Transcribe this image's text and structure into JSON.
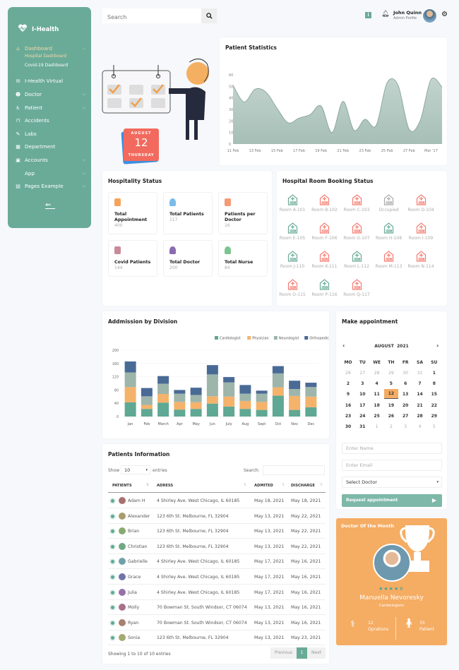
{
  "sidebar": {
    "brand": "I-Health",
    "items": [
      {
        "label": "Dashboard",
        "icon": "home-icon",
        "chevron": true,
        "active": true
      },
      {
        "label": "I-Health Virtual",
        "icon": "chat-icon",
        "chevron": false
      },
      {
        "label": "Doctor",
        "icon": "doctor-icon",
        "chevron": true
      },
      {
        "label": "Patient",
        "icon": "patient-icon",
        "chevron": true
      },
      {
        "label": "Accidents",
        "icon": "bed-icon",
        "chevron": false
      },
      {
        "label": "Labs",
        "icon": "test-tube-icon",
        "chevron": false
      },
      {
        "label": "Department",
        "icon": "building-icon",
        "chevron": false
      },
      {
        "label": "Accounts",
        "icon": "calculator-icon",
        "chevron": true
      },
      {
        "label": "App",
        "icon": "code-icon",
        "chevron": true
      },
      {
        "label": "Pages Example",
        "icon": "page-icon",
        "chevron": true
      }
    ],
    "subitems": [
      {
        "label": "Hospital Dashboard",
        "active": true
      },
      {
        "label": "Covid-19 Dashboard"
      }
    ],
    "collapse_icon": "arrow-left-icon"
  },
  "search": {
    "placeholder": "Search"
  },
  "header": {
    "user_name": "John Quinn",
    "user_role": "Admin Profile"
  },
  "illustration": {
    "month": "AUGUST",
    "day": "12",
    "weekday": "THURSDAY"
  },
  "patient_stats": {
    "title": "Patient Statistics"
  },
  "hospitality": {
    "title": "Hospitality Status",
    "tiles": [
      {
        "label": "Total Appointment",
        "value": "400",
        "color": "#f5a35a"
      },
      {
        "label": "Total Patients",
        "value": "117",
        "color": "#7bbbe8"
      },
      {
        "label": "Patients per Doctor",
        "value": "16",
        "color": "#f59a76"
      },
      {
        "label": "Covid Patients",
        "value": "144",
        "color": "#c98a9a"
      },
      {
        "label": "Total Doctor",
        "value": "200",
        "color": "#8a6bb0"
      },
      {
        "label": "Total Nurse",
        "value": "84",
        "color": "#7cc48e"
      }
    ]
  },
  "rooms": {
    "title": "Hospital Room Booking Status",
    "items": [
      {
        "label": "Room A-101",
        "status": "available"
      },
      {
        "label": "Room B-102",
        "status": "booked"
      },
      {
        "label": "Room C-103",
        "status": "booked"
      },
      {
        "label": "Occupied",
        "status": "occupied"
      },
      {
        "label": "Room D-104",
        "status": "booked"
      },
      {
        "label": "Room E-105",
        "status": "available"
      },
      {
        "label": "Room F-106",
        "status": "booked"
      },
      {
        "label": "Room G-107",
        "status": "booked"
      },
      {
        "label": "Room H-108",
        "status": "available"
      },
      {
        "label": "Room I-109",
        "status": "booked"
      },
      {
        "label": "Room J-110",
        "status": "available"
      },
      {
        "label": "Room K-111",
        "status": "booked"
      },
      {
        "label": "Room L-112",
        "status": "available"
      },
      {
        "label": "Room M-113",
        "status": "booked"
      },
      {
        "label": "Room N-114",
        "status": "booked"
      },
      {
        "label": "Room O-115",
        "status": "booked"
      },
      {
        "label": "Room P-116",
        "status": "available"
      },
      {
        "label": "Room Q-117",
        "status": "booked"
      }
    ],
    "colors": {
      "available": "#6aab98",
      "booked": "#f47c72",
      "occupied": "#aaaaaa"
    }
  },
  "appointment": {
    "title": "Make appointment",
    "month": "AUGUST  2021",
    "weekdays": [
      "MO",
      "TU",
      "WE",
      "TH",
      "FR",
      "SA",
      "SU"
    ],
    "days": [
      [
        "26",
        "27",
        "28",
        "29",
        "30",
        "31",
        "1"
      ],
      [
        "2",
        "3",
        "4",
        "5",
        "6",
        "7",
        "8"
      ],
      [
        "9",
        "10",
        "11",
        "12",
        "13",
        "14",
        "15"
      ],
      [
        "16",
        "17",
        "18",
        "19",
        "20",
        "21",
        "22"
      ],
      [
        "23",
        "24",
        "25",
        "26",
        "27",
        "28",
        "29"
      ],
      [
        "30",
        "31",
        "1",
        "2",
        "3",
        "4",
        "5"
      ]
    ],
    "selected": "12",
    "name_placeholder": "Enter Name",
    "email_placeholder": "Enter Email",
    "doctor_select": "Select Doctor",
    "submit": "Request appointment"
  },
  "doctor_month": {
    "title": "Doctor Of the Month",
    "name": "Manuella Nevoresky",
    "specialty": "Cardiologists",
    "rating": 4.5,
    "operations_value": "12",
    "operations_label": "Oprations",
    "patients_value": "35",
    "patients_label": "Patient"
  },
  "patients": {
    "title": "Patients Information",
    "show_label": "Show",
    "entries_value": "10",
    "entries_label": "entries",
    "search_label": "Search:",
    "columns": [
      "PATIENTS",
      "ADRESS",
      "ADMITED",
      "DISCHARGE"
    ],
    "rows": [
      [
        "Adam H",
        "4 Shirley Ave. West Chicago, IL 60185",
        "May 18, 2021",
        "May 18, 2021"
      ],
      [
        "Alexander",
        "123 6th St. Melbourne, FL 32904",
        "May 13, 2021",
        "May 22, 2021"
      ],
      [
        "Brian",
        "123 6th St. Melbourne, FL 32904",
        "May 13, 2021",
        "May 22, 2021"
      ],
      [
        "Christian",
        "123 6th St. Melbourne, FL 32904",
        "May 13, 2021",
        "May 22, 2021"
      ],
      [
        "Gabrielle",
        "4 Shirley Ave. West Chicago, IL 60185",
        "May 17, 2021",
        "May 16, 2021"
      ],
      [
        "Grace",
        "4 Shirley Ave. West Chicago, IL 60185",
        "May 17, 2021",
        "May 16, 2021"
      ],
      [
        "Julia",
        "4 Shirley Ave. West Chicago, IL 60185",
        "May 17, 2021",
        "May 16, 2021"
      ],
      [
        "Molly",
        "70 Bowman St. South Windsor, CT 06074",
        "May 13, 2021",
        "May 16, 2021"
      ],
      [
        "Ryan",
        "70 Bowman St. South Windsor, CT 06074",
        "May 13, 2021",
        "May 16, 2021"
      ],
      [
        "Sonia",
        "123 6th St. Melbourne, FL 32904",
        "May 13, 2021",
        "May 23, 2021"
      ]
    ],
    "footer": "Showing 1 to 10 of 10 entries",
    "prev": "Previous",
    "page": "1",
    "next": "Next"
  },
  "chart_data": [
    {
      "type": "area",
      "title": "Patient Statistics",
      "x": [
        "11 Feb",
        "12 Feb",
        "13 Feb",
        "14 Feb",
        "15 Feb",
        "16 Feb",
        "17 Feb",
        "18 Feb",
        "19 Feb",
        "20 Feb",
        "21 Feb",
        "22 Feb",
        "23 Feb",
        "24 Feb",
        "25 Feb",
        "26 Feb",
        "27 Feb",
        "28 Feb",
        "Mar '17",
        "2 Mar"
      ],
      "x_tick_labels": [
        "11 Feb",
        "13 Feb",
        "15 Feb",
        "17 Feb",
        "19 Feb",
        "21 Feb",
        "23 Feb",
        "25 Feb",
        "27 Feb",
        "Mar '17"
      ],
      "values": [
        51,
        36.5,
        47.5,
        45,
        31,
        18.5,
        22.5,
        25.5,
        33,
        10,
        37,
        12,
        21.5,
        16,
        53,
        51,
        13,
        20,
        56,
        49.5
      ],
      "ylim": [
        0,
        60
      ],
      "y_ticks": [
        0,
        10,
        20,
        30,
        40,
        50,
        60
      ],
      "color": "#a9c2b9"
    },
    {
      "type": "bar",
      "stacked": true,
      "title": "Addmission by Division",
      "categories": [
        "Jan",
        "Feb",
        "March",
        "Apr",
        "May",
        "Jun",
        "July",
        "Aug",
        "Sept",
        "Oct",
        "Nov",
        "Dec"
      ],
      "series": [
        {
          "name": "Cardiologist",
          "color": "#5fa893",
          "values": [
            43,
            23,
            42,
            21,
            23,
            39,
            30,
            23,
            20,
            63,
            20,
            28
          ]
        },
        {
          "name": "Physician",
          "color": "#f5b26b",
          "values": [
            46,
            12,
            26,
            23,
            20,
            22,
            30,
            24,
            24,
            25,
            42,
            32
          ]
        },
        {
          "name": "Neurologist",
          "color": "#9db5ab",
          "values": [
            44,
            26,
            31,
            25,
            22,
            66,
            43,
            22,
            25,
            42,
            21,
            29
          ]
        },
        {
          "name": "Orthopedic",
          "color": "#4a6a96",
          "values": [
            33,
            25,
            23,
            11,
            22,
            28,
            16,
            26,
            9,
            22,
            25,
            13
          ]
        }
      ],
      "ylim": [
        0,
        200
      ],
      "y_ticks": [
        0,
        40,
        80,
        120,
        160,
        200
      ],
      "legend": "top-right",
      "grid": true
    }
  ]
}
